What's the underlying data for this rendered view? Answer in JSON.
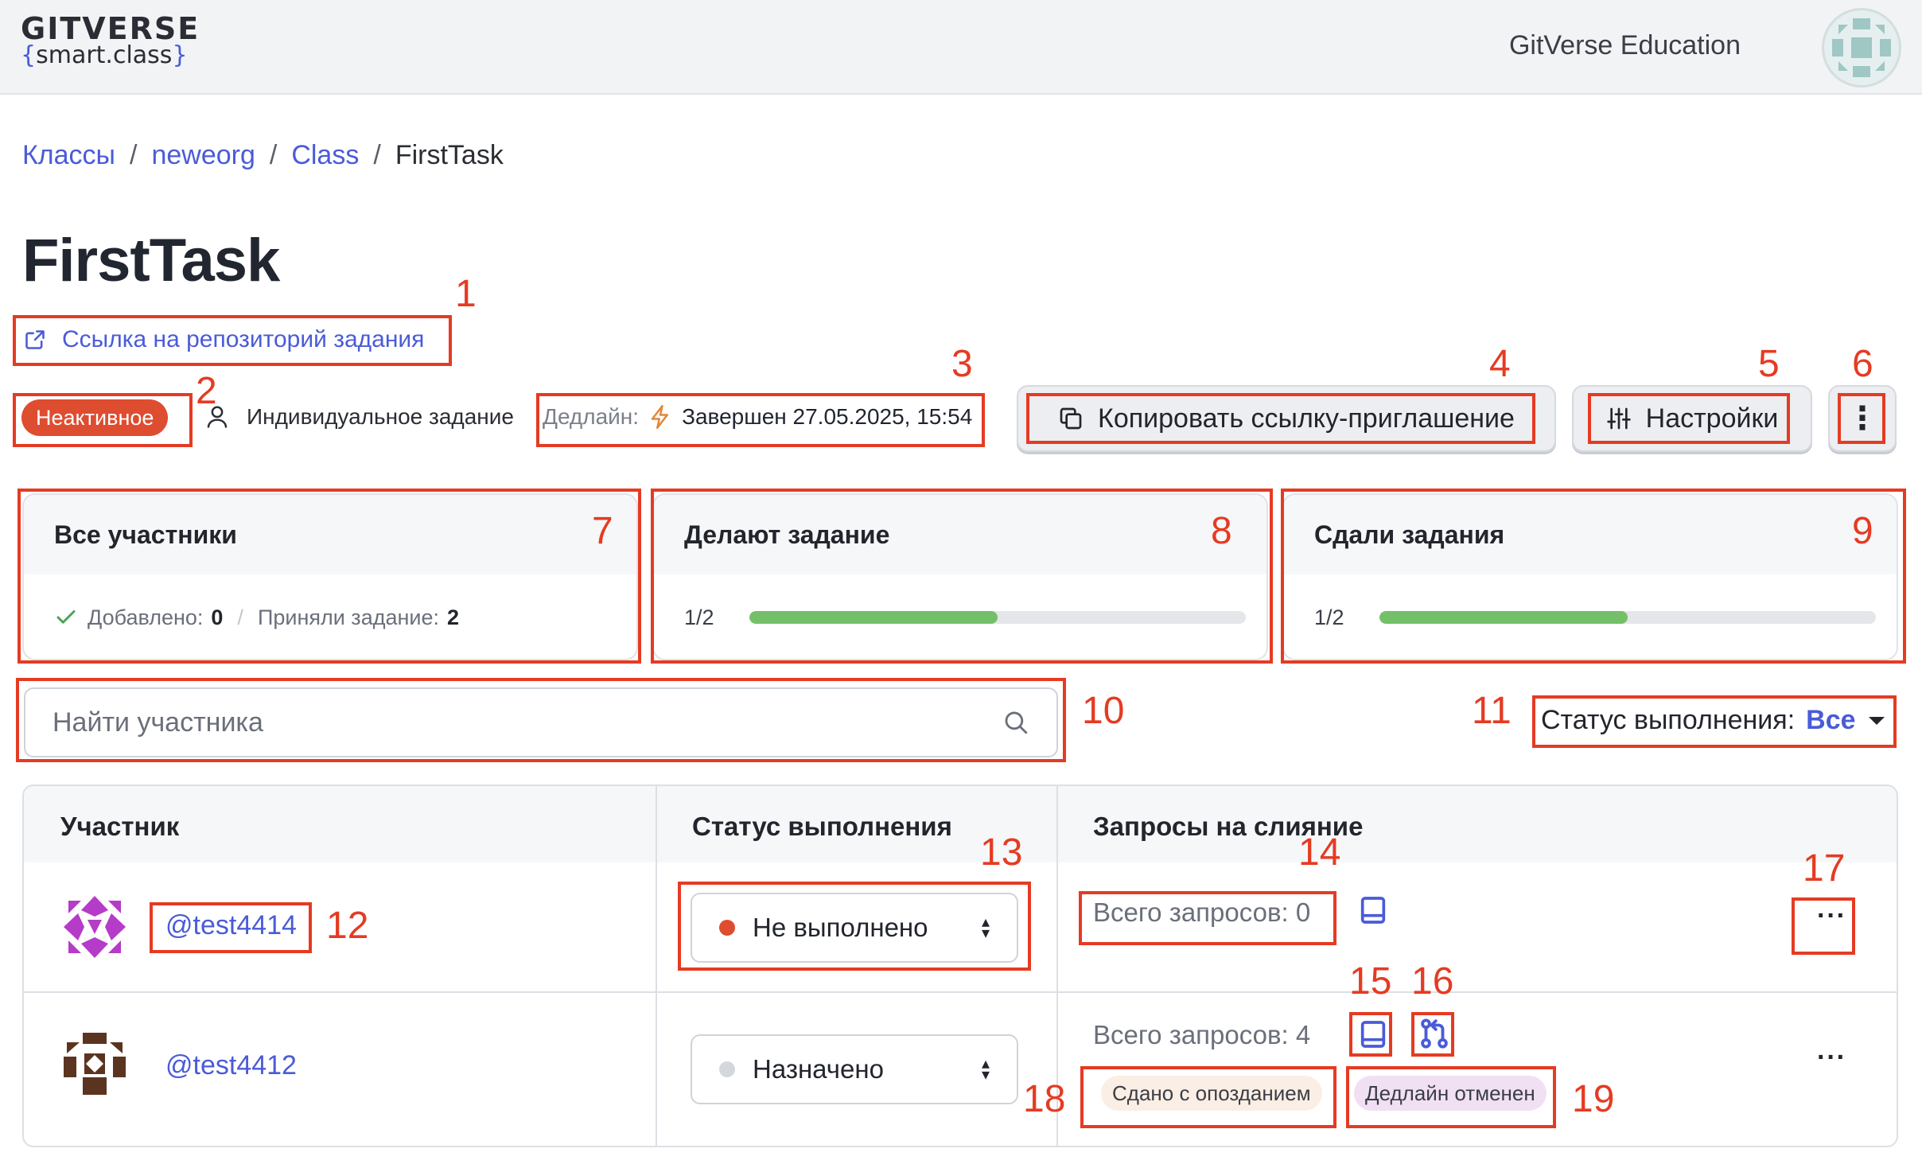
{
  "header": {
    "logo_top": "GITVERSE",
    "logo_open": "{",
    "logo_text": "smart.class",
    "logo_close": "}",
    "org_name": "GitVerse Education"
  },
  "breadcrumb": {
    "items": [
      "Классы",
      "neweorg",
      "Class"
    ],
    "separator": "/",
    "current": "FirstTask"
  },
  "task": {
    "title": "FirstTask",
    "repo_link": "Ссылка на репозиторий задания",
    "status_badge": "Неактивное",
    "type": "Индивидуальное задание",
    "deadline_label": "Дедлайн:",
    "deadline_value": "Завершен 27.05.2025, 15:54"
  },
  "toolbar": {
    "copy_invite": "Копировать ссылку-приглашение",
    "settings": "Настройки",
    "more": "⋮"
  },
  "cards": {
    "all": {
      "title": "Все участники",
      "added_label": "Добавлено:",
      "added_value": "0",
      "sep": "/",
      "accepted_label": "Приняли задание:",
      "accepted_value": "2"
    },
    "doing": {
      "title": "Делают задание",
      "count": "1/2",
      "progress": 0.5
    },
    "done": {
      "title": "Сдали задания",
      "count": "1/2",
      "progress": 0.5
    }
  },
  "search": {
    "placeholder": "Найти участника"
  },
  "filter": {
    "label": "Статус выполнения:",
    "value": "Все"
  },
  "table": {
    "headers": [
      "Участник",
      "Статус выполнения",
      "Запросы на слияние"
    ],
    "rows": [
      {
        "user": "@test4414",
        "status": "Не выполнено",
        "status_color": "#de4d2f",
        "requests": "Всего запросов: 0"
      },
      {
        "user": "@test4412",
        "status": "Назначено",
        "status_color": "#d4d7dc",
        "requests": "Всего запросов: 4",
        "tag_late": "Сдано с опозданием",
        "tag_deadline": "Дедлайн отменен"
      }
    ]
  },
  "annotations": [
    "1",
    "2",
    "3",
    "4",
    "5",
    "6",
    "7",
    "8",
    "9",
    "10",
    "11",
    "12",
    "13",
    "14",
    "15",
    "16",
    "17",
    "18",
    "19"
  ],
  "colors": {
    "accent": "#4a5bd8",
    "annotation": "#e53b23",
    "progress": "#73c069",
    "badge": "#de4d2f"
  }
}
